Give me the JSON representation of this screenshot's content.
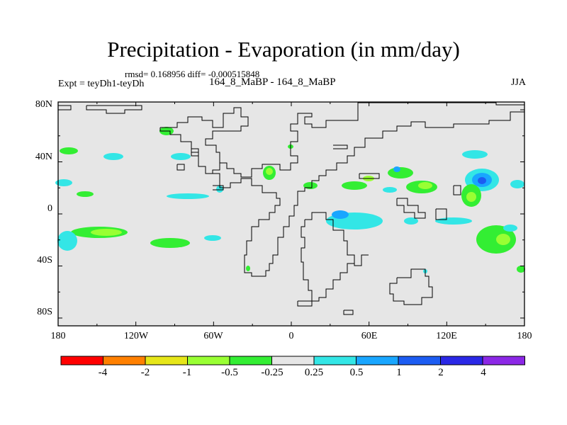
{
  "title": "Precipitation - Evaporation (in mm/day)",
  "subtitle": "rmsd= 0.168956 diff= -0.000515848",
  "left_label": "Expt = teyDh1-teyDh",
  "center_label": "164_8_MaBP - 164_8_MaBP",
  "right_label": "JJA",
  "lat_ticks": [
    "80N",
    "40N",
    "0",
    "40S",
    "80S"
  ],
  "lon_ticks": [
    "180",
    "120W",
    "60W",
    "0",
    "60E",
    "120E",
    "180"
  ],
  "colorbar": {
    "labels": [
      "-4",
      "-2",
      "-1",
      "-0.5",
      "-0.25",
      "0.25",
      "0.5",
      "1",
      "2",
      "4"
    ],
    "colors": [
      "#ff0000",
      "#ff8000",
      "#e6e619",
      "#99ff33",
      "#33ee33",
      "#e6e6e6",
      "#33e6e6",
      "#19a6ff",
      "#1c5cf2",
      "#2a28e6",
      "#8c28e6"
    ]
  },
  "colors": {
    "background": "#e6e6e6",
    "neg_small": "#33ee33",
    "neg_med": "#99ff33",
    "pos_small": "#33e6e6",
    "pos_med": "#19a6ff",
    "pos_large": "#1c5cf2"
  }
}
